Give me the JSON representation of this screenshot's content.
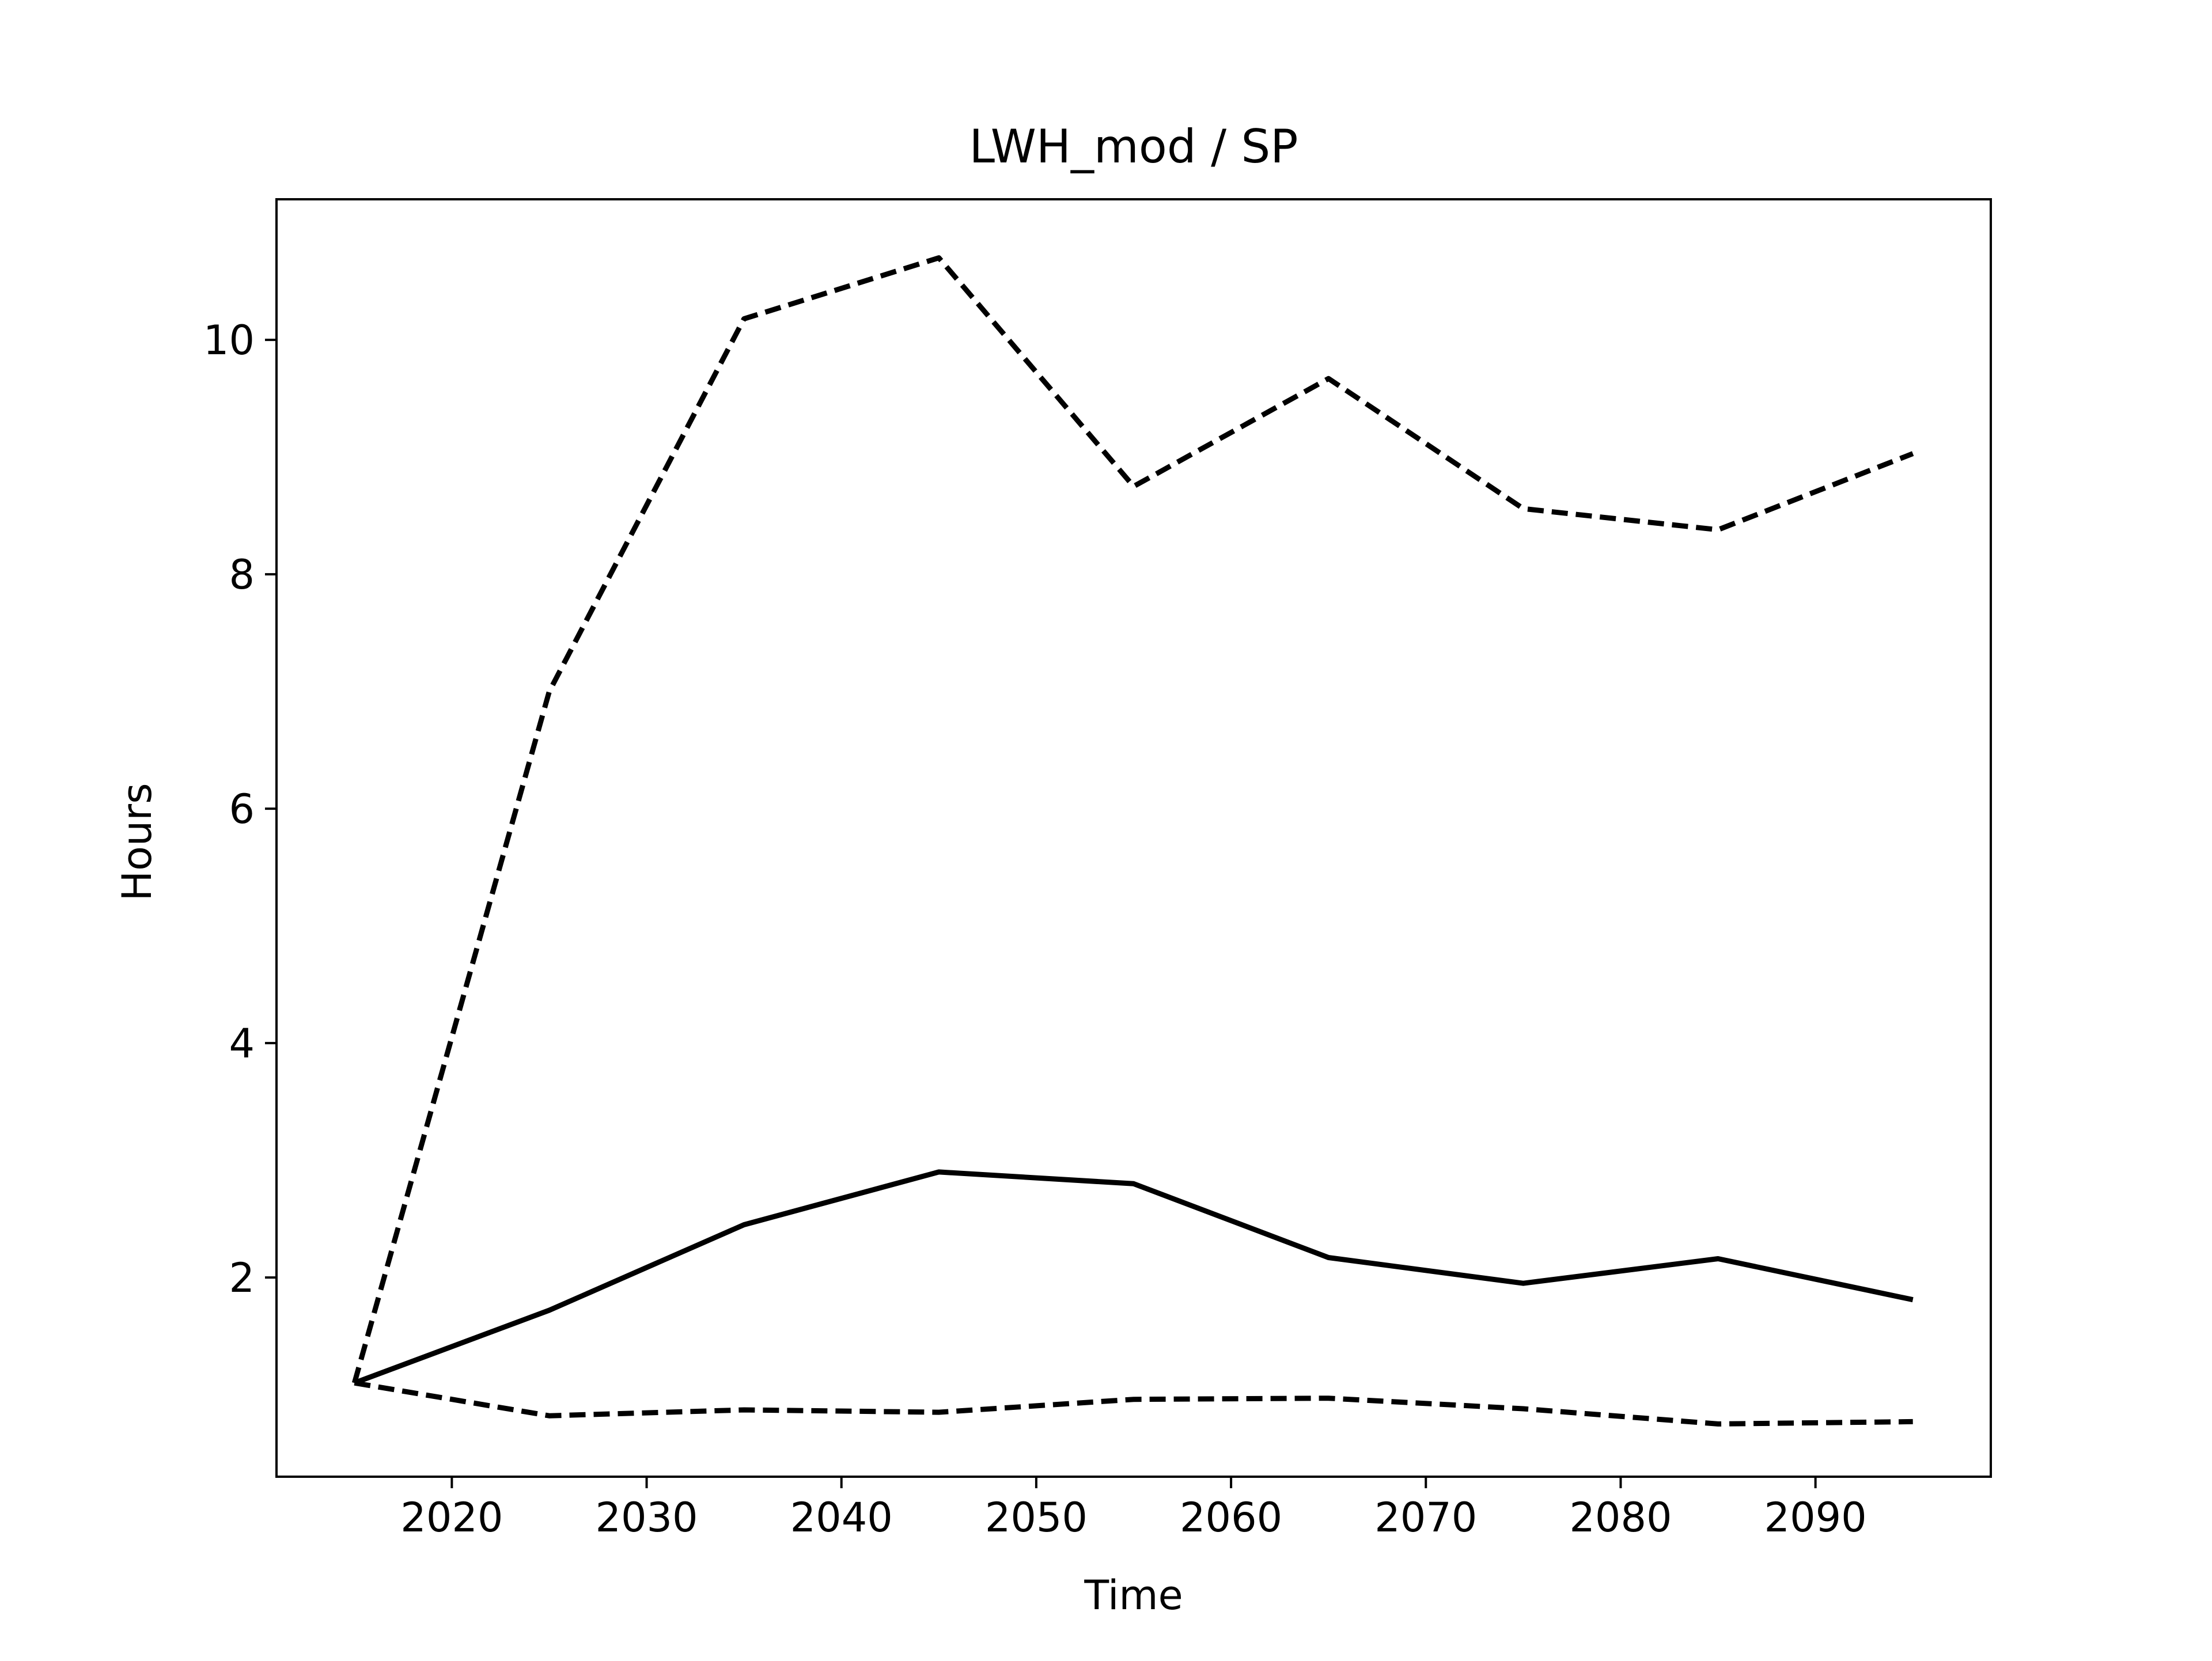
{
  "chart_data": {
    "type": "line",
    "title": "LWH_mod / SP",
    "xlabel": "Time",
    "ylabel": "Hours",
    "xlim": [
      2011,
      2099
    ],
    "ylim": [
      0.3,
      11.2
    ],
    "xticks": [
      2020,
      2030,
      2040,
      2050,
      2060,
      2070,
      2080,
      2090
    ],
    "yticks": [
      2,
      4,
      6,
      8,
      10
    ],
    "grid": false,
    "legend": "none",
    "x": [
      2015,
      2025,
      2035,
      2045,
      2055,
      2065,
      2075,
      2085,
      2095
    ],
    "series": [
      {
        "style": "solid",
        "color": "#000000",
        "values": [
          1.1,
          1.72,
          2.45,
          2.9,
          2.8,
          2.17,
          1.95,
          2.16,
          1.81
        ]
      },
      {
        "style": "dashed",
        "color": "#000000",
        "values": [
          1.1,
          7.0,
          10.18,
          10.7,
          8.75,
          9.67,
          8.56,
          8.38,
          9.03
        ]
      },
      {
        "style": "dashed",
        "color": "#000000",
        "values": [
          1.1,
          0.82,
          0.87,
          0.85,
          0.96,
          0.97,
          0.88,
          0.75,
          0.77
        ]
      }
    ]
  }
}
